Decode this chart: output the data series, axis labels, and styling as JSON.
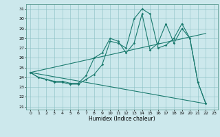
{
  "xlabel": "Humidex (Indice chaleur)",
  "bg_color": "#cce8ec",
  "line_color": "#1a7a6e",
  "xlim": [
    -0.5,
    23.5
  ],
  "ylim": [
    20.7,
    31.5
  ],
  "yticks": [
    21,
    22,
    23,
    24,
    25,
    26,
    27,
    28,
    29,
    30,
    31
  ],
  "xticks": [
    0,
    1,
    2,
    3,
    4,
    5,
    6,
    7,
    8,
    9,
    10,
    11,
    12,
    13,
    14,
    15,
    16,
    17,
    18,
    19,
    20,
    21,
    22,
    23
  ],
  "series": [
    {
      "x": [
        0,
        1,
        2,
        3,
        4,
        5,
        6,
        7,
        8,
        9,
        10,
        11,
        12,
        13,
        14,
        15,
        16,
        17,
        18,
        19,
        20,
        21,
        22
      ],
      "y": [
        24.5,
        24.0,
        23.8,
        23.5,
        23.5,
        23.3,
        23.3,
        23.8,
        24.3,
        25.3,
        27.7,
        27.5,
        27.0,
        30.0,
        31.0,
        30.5,
        27.0,
        27.3,
        28.0,
        29.5,
        28.0,
        23.5,
        21.3
      ]
    },
    {
      "x": [
        0,
        1,
        2,
        3,
        4,
        5,
        6,
        7,
        8,
        9,
        10,
        11,
        12,
        13,
        14,
        15,
        16,
        17,
        18,
        19,
        20,
        21,
        22
      ],
      "y": [
        24.5,
        24.0,
        23.8,
        23.6,
        23.6,
        23.4,
        23.4,
        24.2,
        26.0,
        26.5,
        28.0,
        27.7,
        26.5,
        27.5,
        30.5,
        26.8,
        27.5,
        29.5,
        27.5,
        29.0,
        28.0,
        23.5,
        21.3
      ]
    },
    {
      "x": [
        0,
        22
      ],
      "y": [
        24.5,
        21.3
      ]
    },
    {
      "x": [
        0,
        22
      ],
      "y": [
        24.5,
        28.5
      ]
    }
  ]
}
